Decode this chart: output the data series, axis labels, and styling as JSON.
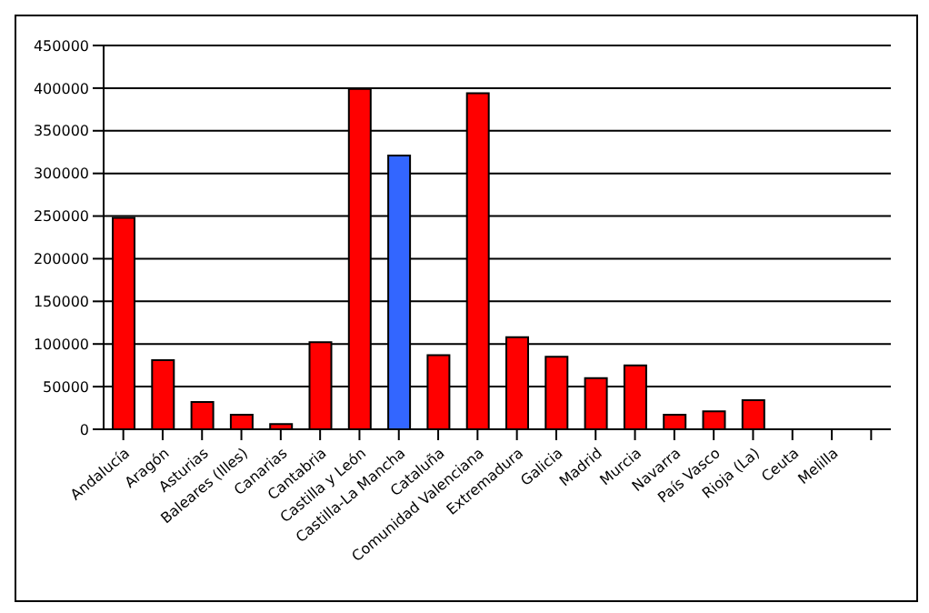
{
  "chart_data": {
    "type": "bar",
    "categories": [
      "Andalucía",
      "Aragón",
      "Asturias",
      "Baleares (Illes)",
      "Canarias",
      "Cantabria",
      "Castilla y León",
      "Castilla-La Mancha",
      "Cataluña",
      "Comunidad Valenciana",
      "Extremadura",
      "Galicia",
      "Madrid",
      "Murcia",
      "Navarra",
      "País Vasco",
      "Rioja (La)",
      "Ceuta",
      "Melilla",
      null
    ],
    "values": [
      248000,
      81000,
      32000,
      17000,
      6000,
      102000,
      399000,
      321000,
      87000,
      394000,
      108000,
      85000,
      60000,
      75000,
      17000,
      21000,
      34000,
      null,
      null,
      null
    ],
    "colors": [
      "#ff0000",
      "#ff0000",
      "#ff0000",
      "#ff0000",
      "#ff0000",
      "#ff0000",
      "#ff0000",
      "#3366ff",
      "#ff0000",
      "#ff0000",
      "#ff0000",
      "#ff0000",
      "#ff0000",
      "#ff0000",
      "#ff0000",
      "#ff0000",
      "#ff0000",
      "#ff0000",
      "#ff0000",
      "#ff0000"
    ],
    "ylim": [
      0,
      450000
    ],
    "yticks": [
      0,
      50000,
      100000,
      150000,
      200000,
      250000,
      300000,
      350000,
      400000,
      450000
    ],
    "grid": "y",
    "legend": false
  }
}
